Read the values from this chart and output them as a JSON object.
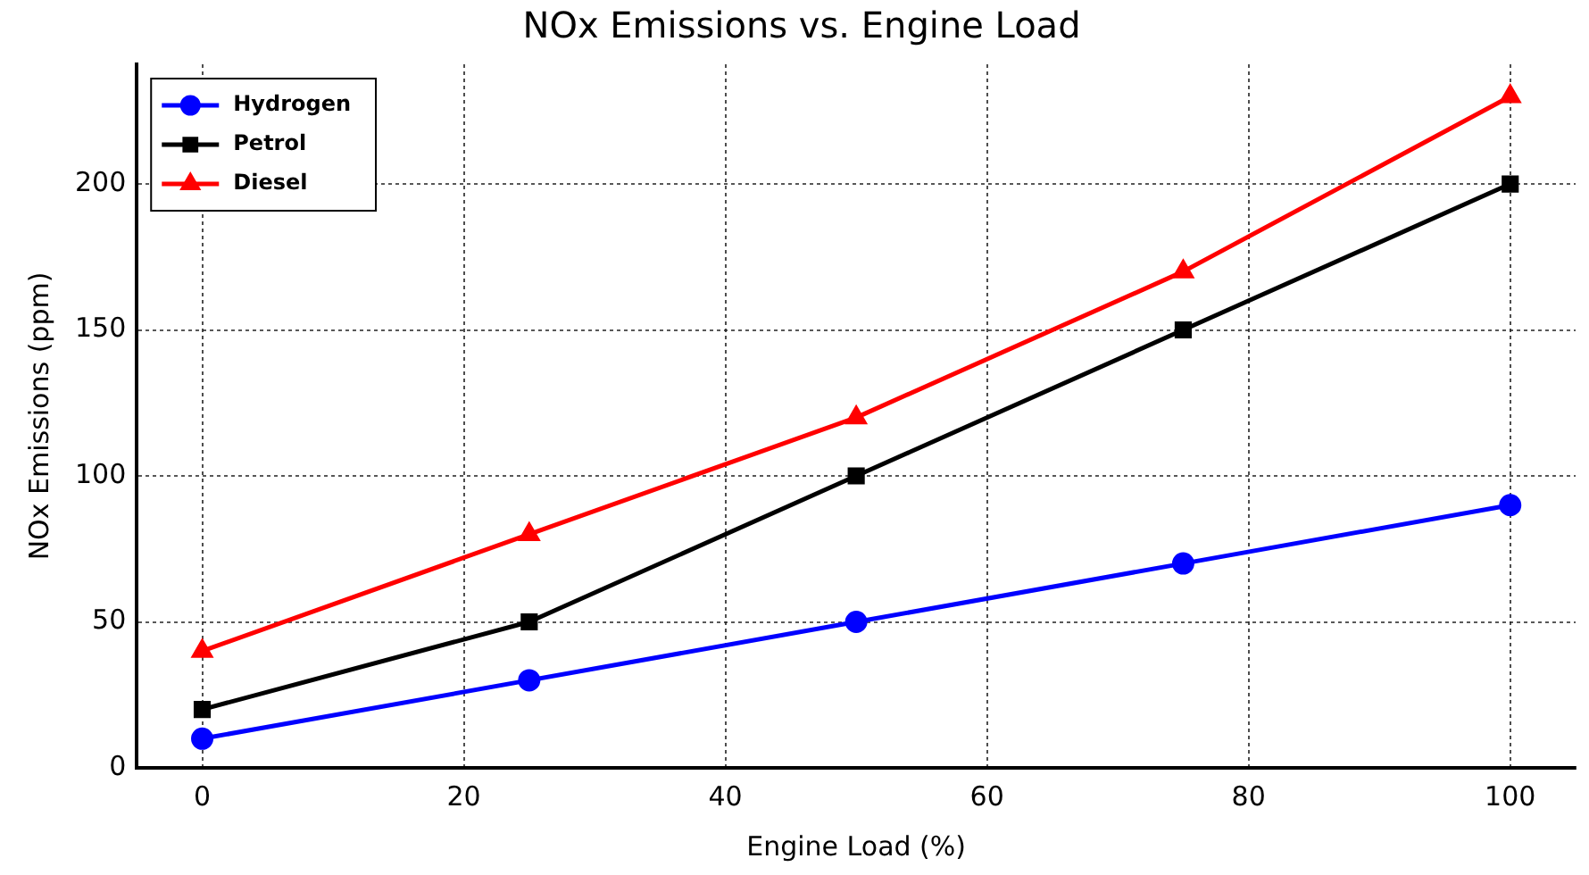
{
  "chart_data": {
    "type": "line",
    "title": "NOx Emissions vs. Engine Load",
    "xlabel": "Engine Load (%)",
    "ylabel": "NOx Emissions (ppm)",
    "x": [
      0,
      25,
      50,
      75,
      100
    ],
    "series": [
      {
        "name": "Hydrogen",
        "color": "#0000ff",
        "values": [
          10,
          30,
          50,
          70,
          90
        ],
        "marker": "circle"
      },
      {
        "name": "Petrol",
        "color": "#000000",
        "values": [
          20,
          50,
          100,
          150,
          200
        ],
        "marker": "square"
      },
      {
        "name": "Diesel",
        "color": "#ff0000",
        "values": [
          40,
          80,
          120,
          170,
          230
        ],
        "marker": "triangle"
      }
    ],
    "xlim": [
      -5,
      105
    ],
    "xticks": [
      0,
      20,
      40,
      60,
      80,
      100
    ],
    "ylim": [
      0,
      241
    ],
    "yticks": [
      0,
      50,
      100,
      150,
      200
    ],
    "grid": true,
    "legend": "top left",
    "line_style": "solid"
  }
}
